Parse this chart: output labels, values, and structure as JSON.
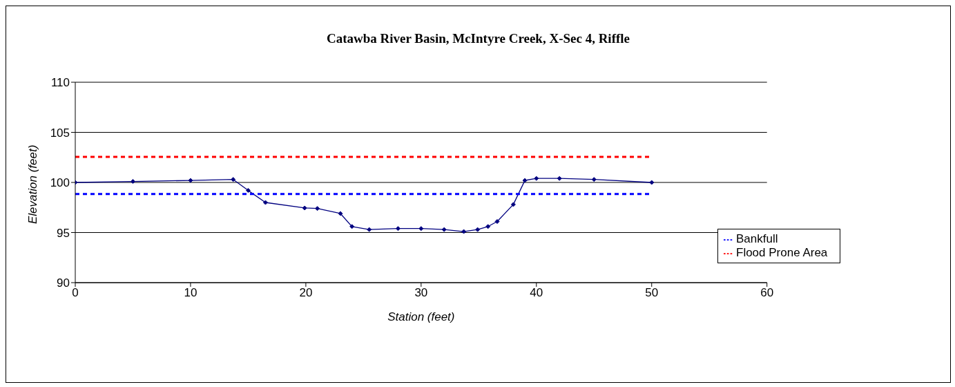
{
  "chart_data": {
    "type": "line",
    "title": "Catawba River Basin, McIntyre Creek, X-Sec 4, Riffle",
    "xlabel": "Station (feet)",
    "ylabel": "Elevation (feet)",
    "xlim": [
      0,
      60
    ],
    "xticks": [
      0,
      10,
      20,
      30,
      40,
      50,
      60
    ],
    "ylim": [
      90,
      110
    ],
    "yticks": [
      90,
      95,
      100,
      105,
      110
    ],
    "grid": "y",
    "legend": "bottom right",
    "series": [
      {
        "color": "#000080",
        "marker": "diamond",
        "line_style": "solid",
        "x": [
          0,
          5,
          10,
          13.7,
          15,
          16.5,
          19.9,
          21,
          23,
          24,
          25.5,
          28,
          30,
          32,
          33.7,
          34.9,
          35.8,
          36.6,
          38,
          39,
          40,
          42,
          45,
          50
        ],
        "values": [
          100,
          100.1,
          100.2,
          100.3,
          99.2,
          98,
          97.45,
          97.4,
          96.9,
          95.6,
          95.3,
          95.4,
          95.4,
          95.3,
          95.1,
          95.3,
          95.6,
          96.1,
          97.8,
          100.2,
          100.4,
          100.4,
          100.3,
          100
        ]
      },
      {
        "name": "Bankfull",
        "color": "#0000ff",
        "marker": "none",
        "line_style": "dashed",
        "x": [
          0,
          50
        ],
        "values": [
          98.85,
          98.85
        ]
      },
      {
        "name": "Flood Prone Area",
        "color": "#ff0000",
        "marker": "none",
        "line_style": "dashed",
        "x": [
          0,
          50
        ],
        "values": [
          102.55,
          102.55
        ]
      }
    ]
  }
}
